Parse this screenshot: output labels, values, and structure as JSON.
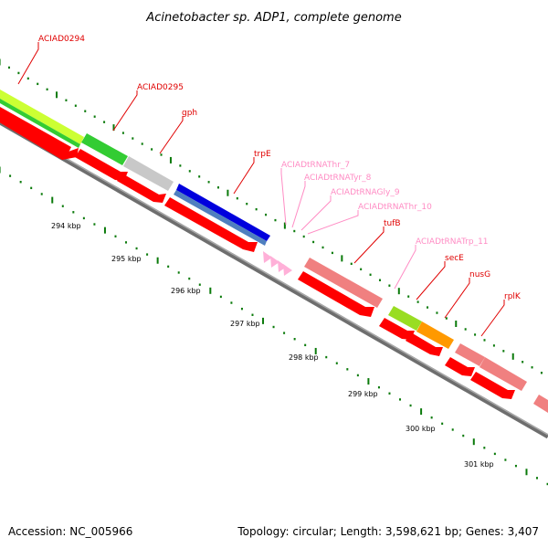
{
  "title": "Acinetobacter sp. ADP1, complete genome",
  "footer": {
    "accession": "Accession: NC_005966",
    "topology": "Topology: circular; Length: 3,598,621 bp; Genes: 3,407"
  },
  "features": [
    {
      "label": "ACIAD0294",
      "color": "#e00000"
    },
    {
      "label": "ACIAD0295",
      "color": "#e00000"
    },
    {
      "label": "gph",
      "color": "#e00000"
    },
    {
      "label": "trpE",
      "color": "#e00000"
    },
    {
      "label": "ACIADtRNAThr_7",
      "color": "#ff8cc4"
    },
    {
      "label": "ACIADtRNATyr_8",
      "color": "#ff8cc4"
    },
    {
      "label": "ACIADtRNAGly_9",
      "color": "#ff8cc4"
    },
    {
      "label": "ACIADtRNAThr_10",
      "color": "#ff8cc4"
    },
    {
      "label": "tufB",
      "color": "#e00000"
    },
    {
      "label": "ACIADtRNATrp_11",
      "color": "#ff8cc4"
    },
    {
      "label": "secE",
      "color": "#e00000"
    },
    {
      "label": "nusG",
      "color": "#e00000"
    },
    {
      "label": "rplK",
      "color": "#e00000"
    }
  ],
  "ticks": [
    "294 kbp",
    "295 kbp",
    "296 kbp",
    "297 kbp",
    "298 kbp",
    "299 kbp",
    "300 kbp",
    "301 kbp"
  ],
  "colors": {
    "cds_reverse": "#ff0000",
    "cds_other": "#e00000",
    "trna": "#ffb0d8",
    "backbone": "#808080",
    "tick": "#0a7a0a",
    "yellowgreen": "#ccff33",
    "green": "#33cc33",
    "gray": "#c8c8c8",
    "blue": "#0000dd",
    "steelblue": "#4f7fbf",
    "salmon": "#f08080",
    "lime": "#99dd22",
    "orange": "#ff9900"
  }
}
